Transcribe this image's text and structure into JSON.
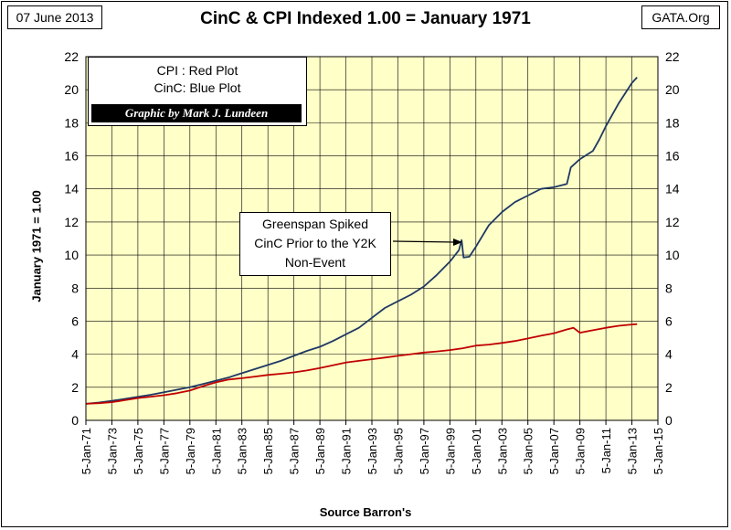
{
  "header": {
    "date": "07 June 2013",
    "site": "GATA.Org"
  },
  "colors": {
    "plot_background": "#FFFFC8",
    "cpi_line": "#C00000",
    "cinc_line": "#1F3864",
    "grid": "#000000"
  },
  "legend": {
    "line1": "CPI : Red Plot",
    "line2": "CinC: Blue Plot",
    "credit": "Graphic by Mark J. Lundeen"
  },
  "annotation": {
    "lines": [
      "Greenspan Spiked",
      "CinC Prior to the Y2K",
      "Non-Event"
    ]
  },
  "chart_data": {
    "type": "line",
    "title": "CinC & CPI Indexed 1.00 = January 1971",
    "xlabel": "Source Barron's",
    "ylabel": "January  1971  = 1.00",
    "xlim": [
      1971,
      2015
    ],
    "ylim": [
      0,
      22
    ],
    "yticks": [
      0,
      2,
      4,
      6,
      8,
      10,
      12,
      14,
      16,
      18,
      20,
      22
    ],
    "xticks": [
      {
        "value": 1971,
        "label": "5-Jan-71"
      },
      {
        "value": 1973,
        "label": "5-Jan-73"
      },
      {
        "value": 1975,
        "label": "5-Jan-75"
      },
      {
        "value": 1977,
        "label": "5-Jan-77"
      },
      {
        "value": 1979,
        "label": "5-Jan-79"
      },
      {
        "value": 1981,
        "label": "5-Jan-81"
      },
      {
        "value": 1983,
        "label": "5-Jan-83"
      },
      {
        "value": 1985,
        "label": "5-Jan-85"
      },
      {
        "value": 1987,
        "label": "5-Jan-87"
      },
      {
        "value": 1989,
        "label": "5-Jan-89"
      },
      {
        "value": 1991,
        "label": "5-Jan-91"
      },
      {
        "value": 1993,
        "label": "5-Jan-93"
      },
      {
        "value": 1995,
        "label": "5-Jan-95"
      },
      {
        "value": 1997,
        "label": "5-Jan-97"
      },
      {
        "value": 1999,
        "label": "5-Jan-99"
      },
      {
        "value": 2001,
        "label": "5-Jan-01"
      },
      {
        "value": 2003,
        "label": "5-Jan-03"
      },
      {
        "value": 2005,
        "label": "5-Jan-05"
      },
      {
        "value": 2007,
        "label": "5-Jan-07"
      },
      {
        "value": 2009,
        "label": "5-Jan-09"
      },
      {
        "value": 2011,
        "label": "5-Jan-11"
      },
      {
        "value": 2013,
        "label": "5-Jan-13"
      },
      {
        "value": 2015,
        "label": "5-Jan-15"
      }
    ],
    "grid": true,
    "legend_position": "top-left",
    "series": [
      {
        "name": "CinC",
        "color": "#1F3864",
        "points": [
          [
            1971,
            1.0
          ],
          [
            1972,
            1.08
          ],
          [
            1973,
            1.18
          ],
          [
            1974,
            1.3
          ],
          [
            1975,
            1.42
          ],
          [
            1976,
            1.55
          ],
          [
            1977,
            1.7
          ],
          [
            1978,
            1.85
          ],
          [
            1979,
            2.0
          ],
          [
            1980,
            2.2
          ],
          [
            1981,
            2.4
          ],
          [
            1982,
            2.6
          ],
          [
            1983,
            2.85
          ],
          [
            1984,
            3.1
          ],
          [
            1985,
            3.35
          ],
          [
            1986,
            3.6
          ],
          [
            1987,
            3.9
          ],
          [
            1988,
            4.2
          ],
          [
            1989,
            4.45
          ],
          [
            1990,
            4.8
          ],
          [
            1991,
            5.2
          ],
          [
            1992,
            5.6
          ],
          [
            1993,
            6.2
          ],
          [
            1994,
            6.8
          ],
          [
            1995,
            7.2
          ],
          [
            1996,
            7.6
          ],
          [
            1997,
            8.1
          ],
          [
            1998,
            8.8
          ],
          [
            1999,
            9.6
          ],
          [
            1999.7,
            10.3
          ],
          [
            1999.9,
            10.9
          ],
          [
            2000.05,
            9.85
          ],
          [
            2000.5,
            9.9
          ],
          [
            2001,
            10.5
          ],
          [
            2002,
            11.8
          ],
          [
            2003,
            12.6
          ],
          [
            2004,
            13.2
          ],
          [
            2005,
            13.6
          ],
          [
            2006,
            14.0
          ],
          [
            2007,
            14.1
          ],
          [
            2008,
            14.3
          ],
          [
            2008.3,
            15.3
          ],
          [
            2009,
            15.8
          ],
          [
            2010,
            16.3
          ],
          [
            2010.5,
            17.0
          ],
          [
            2011,
            17.8
          ],
          [
            2012,
            19.2
          ],
          [
            2013,
            20.4
          ],
          [
            2013.4,
            20.75
          ]
        ]
      },
      {
        "name": "CPI",
        "color": "#C00000",
        "points": [
          [
            1971,
            1.0
          ],
          [
            1972,
            1.04
          ],
          [
            1973,
            1.1
          ],
          [
            1974,
            1.22
          ],
          [
            1975,
            1.35
          ],
          [
            1976,
            1.43
          ],
          [
            1977,
            1.52
          ],
          [
            1978,
            1.64
          ],
          [
            1979,
            1.8
          ],
          [
            1980,
            2.07
          ],
          [
            1981,
            2.3
          ],
          [
            1982,
            2.47
          ],
          [
            1983,
            2.55
          ],
          [
            1984,
            2.65
          ],
          [
            1985,
            2.75
          ],
          [
            1986,
            2.82
          ],
          [
            1987,
            2.9
          ],
          [
            1988,
            3.02
          ],
          [
            1989,
            3.17
          ],
          [
            1990,
            3.33
          ],
          [
            1991,
            3.5
          ],
          [
            1992,
            3.6
          ],
          [
            1993,
            3.7
          ],
          [
            1994,
            3.8
          ],
          [
            1995,
            3.9
          ],
          [
            1996,
            4.0
          ],
          [
            1997,
            4.1
          ],
          [
            1998,
            4.17
          ],
          [
            1999,
            4.25
          ],
          [
            2000,
            4.36
          ],
          [
            2001,
            4.52
          ],
          [
            2002,
            4.58
          ],
          [
            2003,
            4.68
          ],
          [
            2004,
            4.8
          ],
          [
            2005,
            4.95
          ],
          [
            2006,
            5.12
          ],
          [
            2007,
            5.27
          ],
          [
            2008,
            5.5
          ],
          [
            2008.5,
            5.6
          ],
          [
            2009,
            5.3
          ],
          [
            2010,
            5.45
          ],
          [
            2011,
            5.6
          ],
          [
            2012,
            5.72
          ],
          [
            2013,
            5.8
          ],
          [
            2013.4,
            5.82
          ]
        ]
      }
    ]
  }
}
